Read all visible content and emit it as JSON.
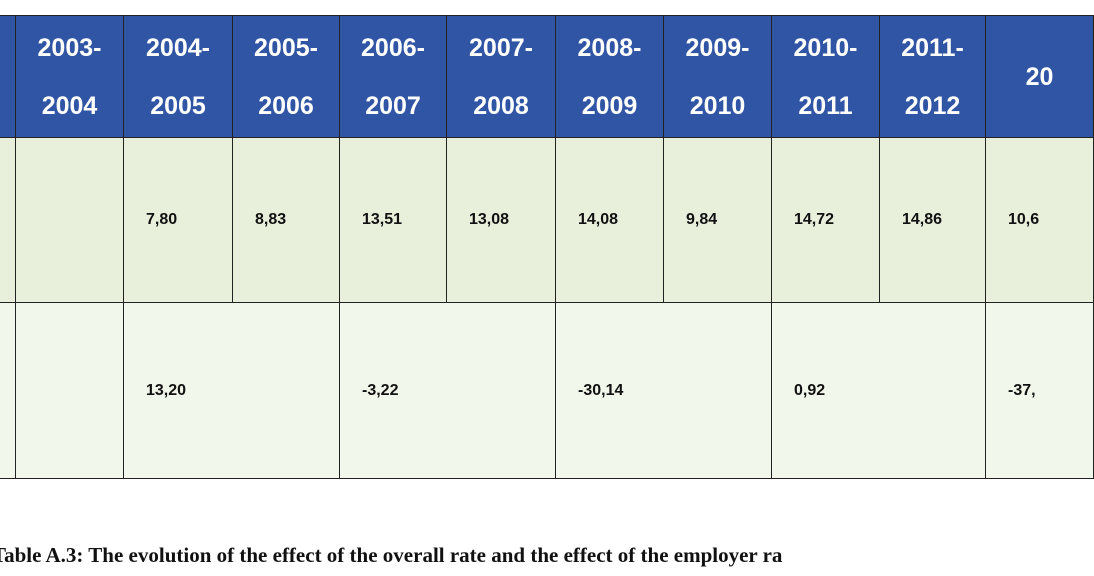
{
  "table": {
    "header": [
      "2003-2004",
      "2004-2005",
      "2005-2006",
      "2006-2007",
      "2007-2008",
      "2008-2009",
      "2009-2010",
      "2010-2011",
      "2011-2012",
      "20"
    ],
    "rows": [
      [
        "7,80",
        "8,83",
        "13,51",
        "13,08",
        "14,08",
        "9,84",
        "14,72",
        "14,86",
        "10,6"
      ],
      [
        "13,20",
        "-3,22",
        "-30,14",
        "0,92",
        "-37,"
      ]
    ]
  },
  "caption": "Table A.3: The evolution of the effect of the overall rate and the effect of the employer ra"
}
